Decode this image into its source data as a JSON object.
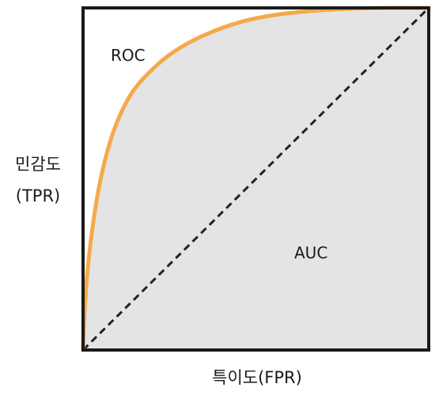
{
  "chart_data": {
    "type": "area",
    "series": [
      {
        "name": "ROC",
        "color": "#f5a94a",
        "points": [
          [
            0,
            0
          ],
          [
            0.005,
            0.12
          ],
          [
            0.012,
            0.22
          ],
          [
            0.025,
            0.34
          ],
          [
            0.045,
            0.47
          ],
          [
            0.07,
            0.58
          ],
          [
            0.1,
            0.67
          ],
          [
            0.14,
            0.75
          ],
          [
            0.19,
            0.81
          ],
          [
            0.26,
            0.87
          ],
          [
            0.35,
            0.92
          ],
          [
            0.46,
            0.96
          ],
          [
            0.58,
            0.983
          ],
          [
            0.72,
            0.995
          ],
          [
            0.86,
            1.0
          ],
          [
            1,
            1
          ]
        ]
      },
      {
        "color": "#222222",
        "style": "dashed",
        "points": [
          [
            0,
            0
          ],
          [
            1,
            1
          ]
        ]
      }
    ],
    "fill": {
      "color": "#e4e4e4"
    },
    "annotations": {
      "roc": "ROC",
      "auc": "AUC"
    },
    "xlabel": "특이도(FPR)",
    "ylabel_line1": "민감도",
    "ylabel_line2": "(TPR)",
    "xlim": [
      0,
      1
    ],
    "ylim": [
      0,
      1
    ],
    "grid": false
  }
}
